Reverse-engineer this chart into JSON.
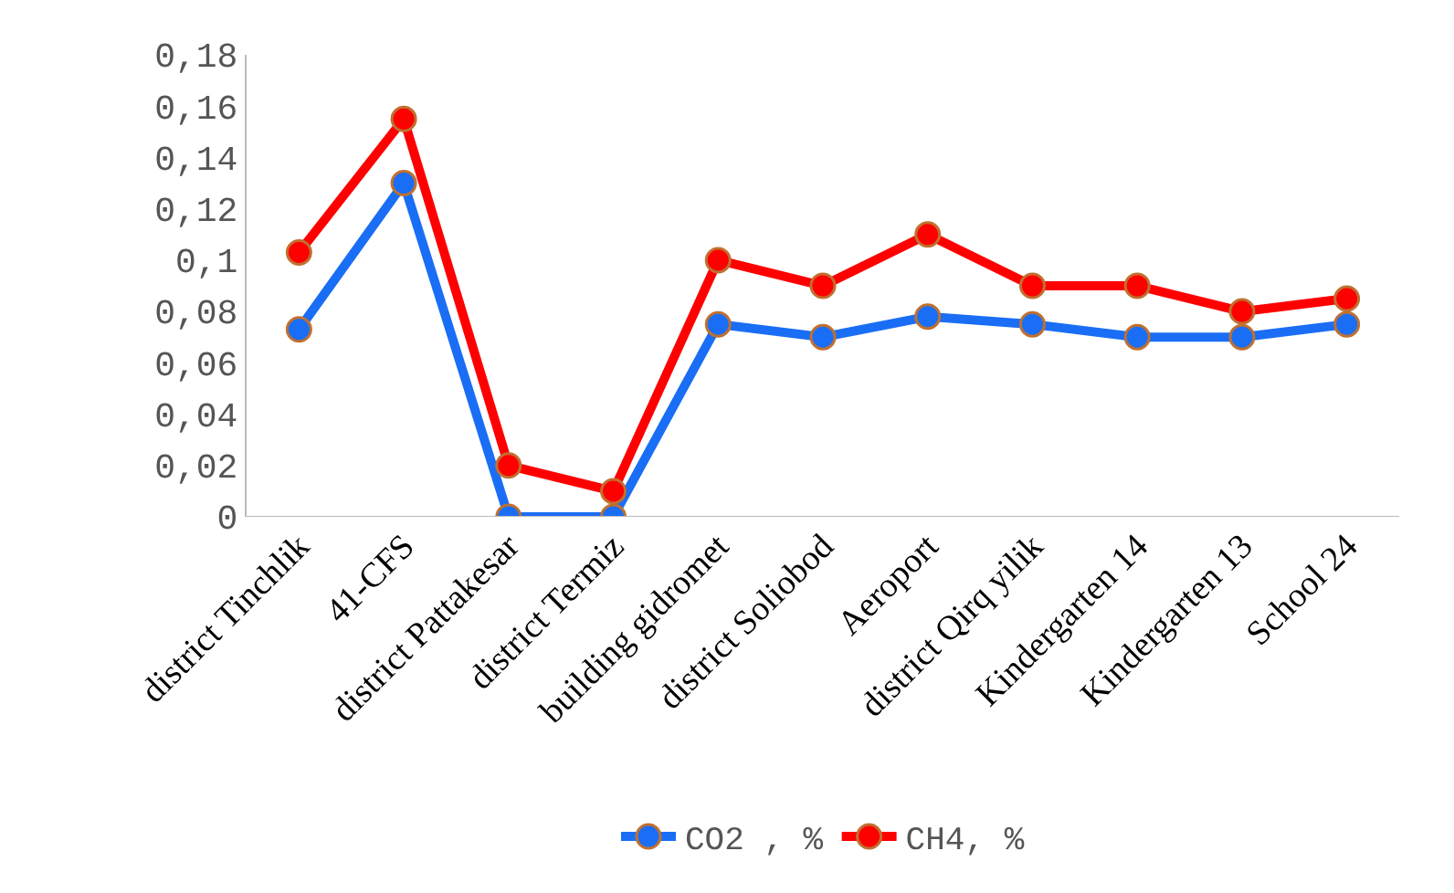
{
  "chart_data": {
    "type": "line",
    "categories": [
      "district Tinchlik",
      "41-CFS",
      "district Pattakesar",
      "district Termiz",
      "building gidromet",
      "district Soliobod",
      "Aeroport",
      "district Qirq yilik",
      "Kindergarten 14",
      "Kindergarten 13",
      "School 24"
    ],
    "series": [
      {
        "name": "CO2 , %",
        "color": "#1a6ef5",
        "values": [
          0.073,
          0.13,
          0,
          0,
          0.075,
          0.07,
          0.078,
          0.075,
          0.07,
          0.07,
          0.075
        ]
      },
      {
        "name": "CH4, %",
        "color": "#ff0000",
        "values": [
          0.103,
          0.155,
          0.02,
          0.01,
          0.1,
          0.09,
          0.11,
          0.09,
          0.09,
          0.08,
          0.085
        ]
      }
    ],
    "ylim": [
      0,
      0.18
    ],
    "yticks": [
      {
        "value": 0,
        "label": "0"
      },
      {
        "value": 0.02,
        "label": "0,02"
      },
      {
        "value": 0.04,
        "label": "0,04"
      },
      {
        "value": 0.06,
        "label": "0,06"
      },
      {
        "value": 0.08,
        "label": "0,08"
      },
      {
        "value": 0.1,
        "label": "0,1"
      },
      {
        "value": 0.12,
        "label": "0,12"
      },
      {
        "value": 0.14,
        "label": "0,14"
      },
      {
        "value": 0.16,
        "label": "0,16"
      },
      {
        "value": 0.18,
        "label": "0,18"
      }
    ],
    "grid": false,
    "legend": "bottom",
    "marker": "circle",
    "line_style": "solid"
  }
}
